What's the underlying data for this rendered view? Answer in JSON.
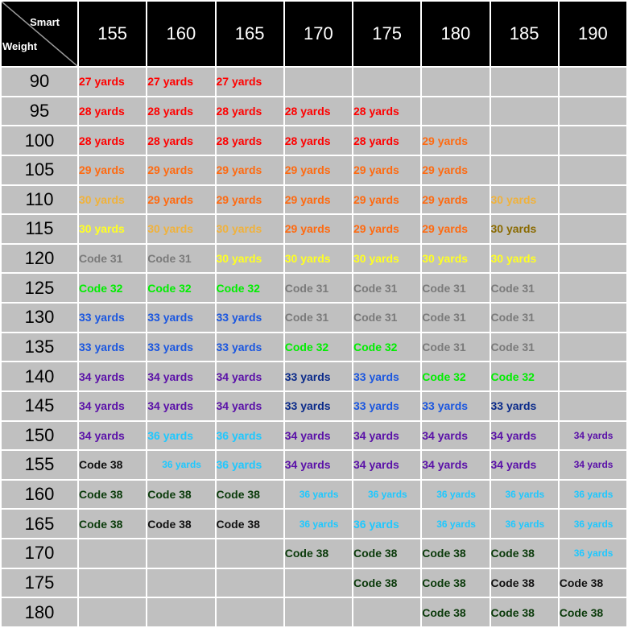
{
  "corner": {
    "top_label": "Smart",
    "bottom_label": "Weight"
  },
  "columns": [
    "155",
    "160",
    "165",
    "170",
    "175",
    "180",
    "185",
    "190"
  ],
  "colors": {
    "27": "#ff0000",
    "28": "#ff0000",
    "29": "#ff6a10",
    "30o": "#f0b23c",
    "30y": "#ffff22",
    "30b": "#8a6a00",
    "c31": "#7a7a7a",
    "c32": "#00ee00",
    "33": "#1a56e0",
    "33d": "#0a2a8a",
    "34": "#5a10a8",
    "36": "#1ec8ff",
    "c38": "#0a3a0a",
    "c38k": "#101010"
  },
  "rows": [
    {
      "weight": "90",
      "cells": [
        [
          "27 yards",
          "27",
          0
        ],
        [
          "27 yards",
          "27",
          0
        ],
        [
          "27 yards",
          "27",
          0
        ],
        null,
        null,
        null,
        null,
        null
      ]
    },
    {
      "weight": "95",
      "cells": [
        [
          "28 yards",
          "28",
          0
        ],
        [
          "28 yards",
          "28",
          0
        ],
        [
          "28 yards",
          "28",
          0
        ],
        [
          "28 yards",
          "28",
          0
        ],
        [
          "28 yards",
          "28",
          0
        ],
        null,
        null,
        null
      ]
    },
    {
      "weight": "100",
      "cells": [
        [
          "28 yards",
          "28",
          0
        ],
        [
          "28 yards",
          "28",
          0
        ],
        [
          "28 yards",
          "28",
          0
        ],
        [
          "28 yards",
          "28",
          0
        ],
        [
          "28 yards",
          "28",
          0
        ],
        [
          "29 yards",
          "29",
          0
        ],
        null,
        null
      ]
    },
    {
      "weight": "105",
      "cells": [
        [
          "29 yards",
          "29",
          0
        ],
        [
          "29 yards",
          "29",
          0
        ],
        [
          "29 yards",
          "29",
          0
        ],
        [
          "29 yards",
          "29",
          0
        ],
        [
          "29 yards",
          "29",
          0
        ],
        [
          "29 yards",
          "29",
          0
        ],
        null,
        null
      ]
    },
    {
      "weight": "110",
      "cells": [
        [
          "30 yards",
          "30o",
          0
        ],
        [
          "29 yards",
          "29",
          0
        ],
        [
          "29 yards",
          "29",
          0
        ],
        [
          "29 yards",
          "29",
          0
        ],
        [
          "29 yards",
          "29",
          0
        ],
        [
          "29 yards",
          "29",
          0
        ],
        [
          "30 yards",
          "30o",
          0
        ],
        null
      ]
    },
    {
      "weight": "115",
      "cells": [
        [
          "30 yards",
          "30y",
          0
        ],
        [
          "30 yards",
          "30o",
          0
        ],
        [
          "30 yards",
          "30o",
          0
        ],
        [
          "29 yards",
          "29",
          0
        ],
        [
          "29 yards",
          "29",
          0
        ],
        [
          "29 yards",
          "29",
          0
        ],
        [
          "30 yards",
          "30b",
          0
        ],
        null
      ]
    },
    {
      "weight": "120",
      "cells": [
        [
          "Code 31",
          "c31",
          0
        ],
        [
          "Code 31",
          "c31",
          0
        ],
        [
          "30 yards",
          "30y",
          0
        ],
        [
          "30 yards",
          "30y",
          0
        ],
        [
          "30 yards",
          "30y",
          0
        ],
        [
          "30 yards",
          "30y",
          0
        ],
        [
          "30 yards",
          "30y",
          0
        ],
        null
      ]
    },
    {
      "weight": "125",
      "cells": [
        [
          "Code 32",
          "c32",
          0
        ],
        [
          "Code 32",
          "c32",
          0
        ],
        [
          "Code 32",
          "c32",
          0
        ],
        [
          "Code 31",
          "c31",
          0
        ],
        [
          "Code 31",
          "c31",
          0
        ],
        [
          "Code 31",
          "c31",
          0
        ],
        [
          "Code 31",
          "c31",
          0
        ],
        null
      ]
    },
    {
      "weight": "130",
      "cells": [
        [
          "33 yards",
          "33",
          0
        ],
        [
          "33 yards",
          "33",
          0
        ],
        [
          "33 yards",
          "33",
          0
        ],
        [
          "Code 31",
          "c31",
          0
        ],
        [
          "Code 31",
          "c31",
          0
        ],
        [
          "Code 31",
          "c31",
          0
        ],
        [
          "Code 31",
          "c31",
          0
        ],
        null
      ]
    },
    {
      "weight": "135",
      "cells": [
        [
          "33 yards",
          "33",
          0
        ],
        [
          "33 yards",
          "33",
          0
        ],
        [
          "33 yards",
          "33",
          0
        ],
        [
          "Code 32",
          "c32",
          0
        ],
        [
          "Code 32",
          "c32",
          0
        ],
        [
          "Code 31",
          "c31",
          0
        ],
        [
          "Code 31",
          "c31",
          0
        ],
        null
      ]
    },
    {
      "weight": "140",
      "cells": [
        [
          "34 yards",
          "34",
          0
        ],
        [
          "34 yards",
          "34",
          0
        ],
        [
          "34 yards",
          "34",
          0
        ],
        [
          "33 yards",
          "33d",
          0
        ],
        [
          "33 yards",
          "33",
          0
        ],
        [
          "Code 32",
          "c32",
          0
        ],
        [
          "Code 32",
          "c32",
          0
        ],
        null
      ]
    },
    {
      "weight": "145",
      "cells": [
        [
          "34 yards",
          "34",
          0
        ],
        [
          "34 yards",
          "34",
          0
        ],
        [
          "34 yards",
          "34",
          0
        ],
        [
          "33 yards",
          "33d",
          0
        ],
        [
          "33 yards",
          "33",
          0
        ],
        [
          "33 yards",
          "33",
          0
        ],
        [
          "33 yards",
          "33d",
          0
        ],
        null
      ]
    },
    {
      "weight": "150",
      "cells": [
        [
          "34 yards",
          "34",
          0
        ],
        [
          "36 yards",
          "36",
          0
        ],
        [
          "36 yards",
          "36",
          0
        ],
        [
          "34 yards",
          "34",
          0
        ],
        [
          "34 yards",
          "34",
          0
        ],
        [
          "34 yards",
          "34",
          0
        ],
        [
          "34 yards",
          "34",
          0
        ],
        [
          "34 yards",
          "34",
          1
        ]
      ]
    },
    {
      "weight": "155",
      "cells": [
        [
          "Code 38",
          "c38k",
          0
        ],
        [
          "36 yards",
          "36",
          1
        ],
        [
          "36 yards",
          "36",
          0
        ],
        [
          "34 yards",
          "34",
          0
        ],
        [
          "34 yards",
          "34",
          0
        ],
        [
          "34 yards",
          "34",
          0
        ],
        [
          "34 yards",
          "34",
          0
        ],
        [
          "34 yards",
          "34",
          1
        ]
      ]
    },
    {
      "weight": "160",
      "cells": [
        [
          "Code 38",
          "c38",
          0
        ],
        [
          "Code 38",
          "c38",
          0
        ],
        [
          "Code 38",
          "c38",
          0
        ],
        [
          "36 yards",
          "36",
          1
        ],
        [
          "36 yards",
          "36",
          1
        ],
        [
          "36 yards",
          "36",
          1
        ],
        [
          "36 yards",
          "36",
          1
        ],
        [
          "36 yards",
          "36",
          1
        ]
      ]
    },
    {
      "weight": "165",
      "cells": [
        [
          "Code 38",
          "c38",
          0
        ],
        [
          "Code 38",
          "c38k",
          0
        ],
        [
          "Code 38",
          "c38k",
          0
        ],
        [
          "36 yards",
          "36",
          1
        ],
        [
          "36 yards",
          "36",
          0
        ],
        [
          "36 yards",
          "36",
          1
        ],
        [
          "36 yards",
          "36",
          1
        ],
        [
          "36 yards",
          "36",
          1
        ]
      ]
    },
    {
      "weight": "170",
      "cells": [
        null,
        null,
        null,
        [
          "Code 38",
          "c38",
          0
        ],
        [
          "Code 38",
          "c38",
          0
        ],
        [
          "Code 38",
          "c38",
          0
        ],
        [
          "Code 38",
          "c38",
          0
        ],
        [
          "36 yards",
          "36",
          1
        ]
      ]
    },
    {
      "weight": "175",
      "cells": [
        null,
        null,
        null,
        null,
        [
          "Code 38",
          "c38",
          0
        ],
        [
          "Code 38",
          "c38",
          0
        ],
        [
          "Code 38",
          "c38k",
          0
        ],
        [
          "Code 38",
          "c38k",
          0
        ]
      ]
    },
    {
      "weight": "180",
      "cells": [
        null,
        null,
        null,
        null,
        null,
        [
          "Code 38",
          "c38",
          0
        ],
        [
          "Code 38",
          "c38",
          0
        ],
        [
          "Code 38",
          "c38",
          0
        ]
      ]
    }
  ]
}
